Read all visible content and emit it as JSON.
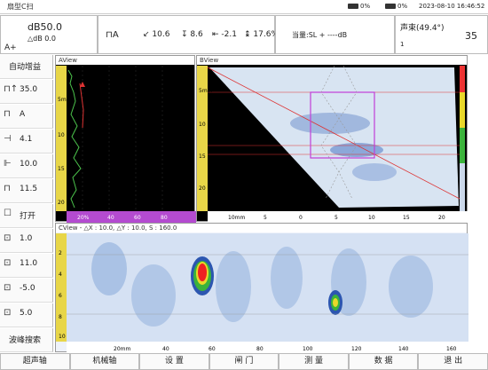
{
  "app": {
    "title": "扇型C扫",
    "status1": "0%",
    "status2": "0%",
    "datetime": "2023-08-10 16:46:52"
  },
  "header": {
    "gain_db": "dB50.0",
    "delta_db": "△dB 0.0",
    "mode": "A+",
    "gate": "A",
    "v1": "10.6",
    "v2": "8.6",
    "v3": "-2.1",
    "v4": "17.6%",
    "current_text": "当量:SL + ----dB",
    "beam_label": "声束(49.4°)",
    "beam_sub": "1",
    "beam_value": "35"
  },
  "sidebar": [
    {
      "icon": "auto-gain-icon",
      "label": "自动增益",
      "value": ""
    },
    {
      "icon": "range-icon",
      "glyph": "⊓↑",
      "value": "35.0"
    },
    {
      "icon": "gate-icon",
      "glyph": "⊓",
      "value": "A"
    },
    {
      "icon": "gate-start-icon",
      "glyph": "⊣",
      "value": "4.1"
    },
    {
      "icon": "gate-width-icon",
      "glyph": "⊩",
      "value": "10.0"
    },
    {
      "icon": "gate-height-icon",
      "glyph": "⊓",
      "value": "11.5"
    },
    {
      "icon": "checkbox-icon",
      "glyph": "☐",
      "value": "打开"
    },
    {
      "icon": "cursor-x-icon",
      "glyph": "⊡",
      "value": "1.0"
    },
    {
      "icon": "cursor-y-icon",
      "glyph": "⊡",
      "value": "11.0"
    },
    {
      "icon": "cursor-z-icon",
      "glyph": "⊡",
      "value": "-5.0"
    },
    {
      "icon": "cursor-w-icon",
      "glyph": "⊡",
      "value": "5.0"
    },
    {
      "icon": "peak-search-icon",
      "label": "波峰搜索",
      "value": ""
    }
  ],
  "aview": {
    "title": "AView",
    "ylabel": "5mm",
    "yticks": [
      "10",
      "15",
      "20"
    ],
    "xticks": [
      "20%",
      "40",
      "60",
      "80"
    ]
  },
  "bview": {
    "title": "BView",
    "yticks": [
      "5mm",
      "10",
      "15",
      "20"
    ],
    "xticks": [
      "10mm",
      "5",
      "0",
      "5",
      "10",
      "15",
      "20"
    ]
  },
  "cview": {
    "title": "CView - △X : 10.0, △Y : 10.0, S : 160.0",
    "xticks": [
      "20mm",
      "40",
      "60",
      "80",
      "100",
      "120",
      "140",
      "160"
    ],
    "yticks": [
      "2",
      "4",
      "6",
      "8",
      "10"
    ]
  },
  "bottom": [
    "超声轴",
    "机械轴",
    "设 置",
    "闸 门",
    "测 量",
    "数 据",
    "退 出"
  ]
}
